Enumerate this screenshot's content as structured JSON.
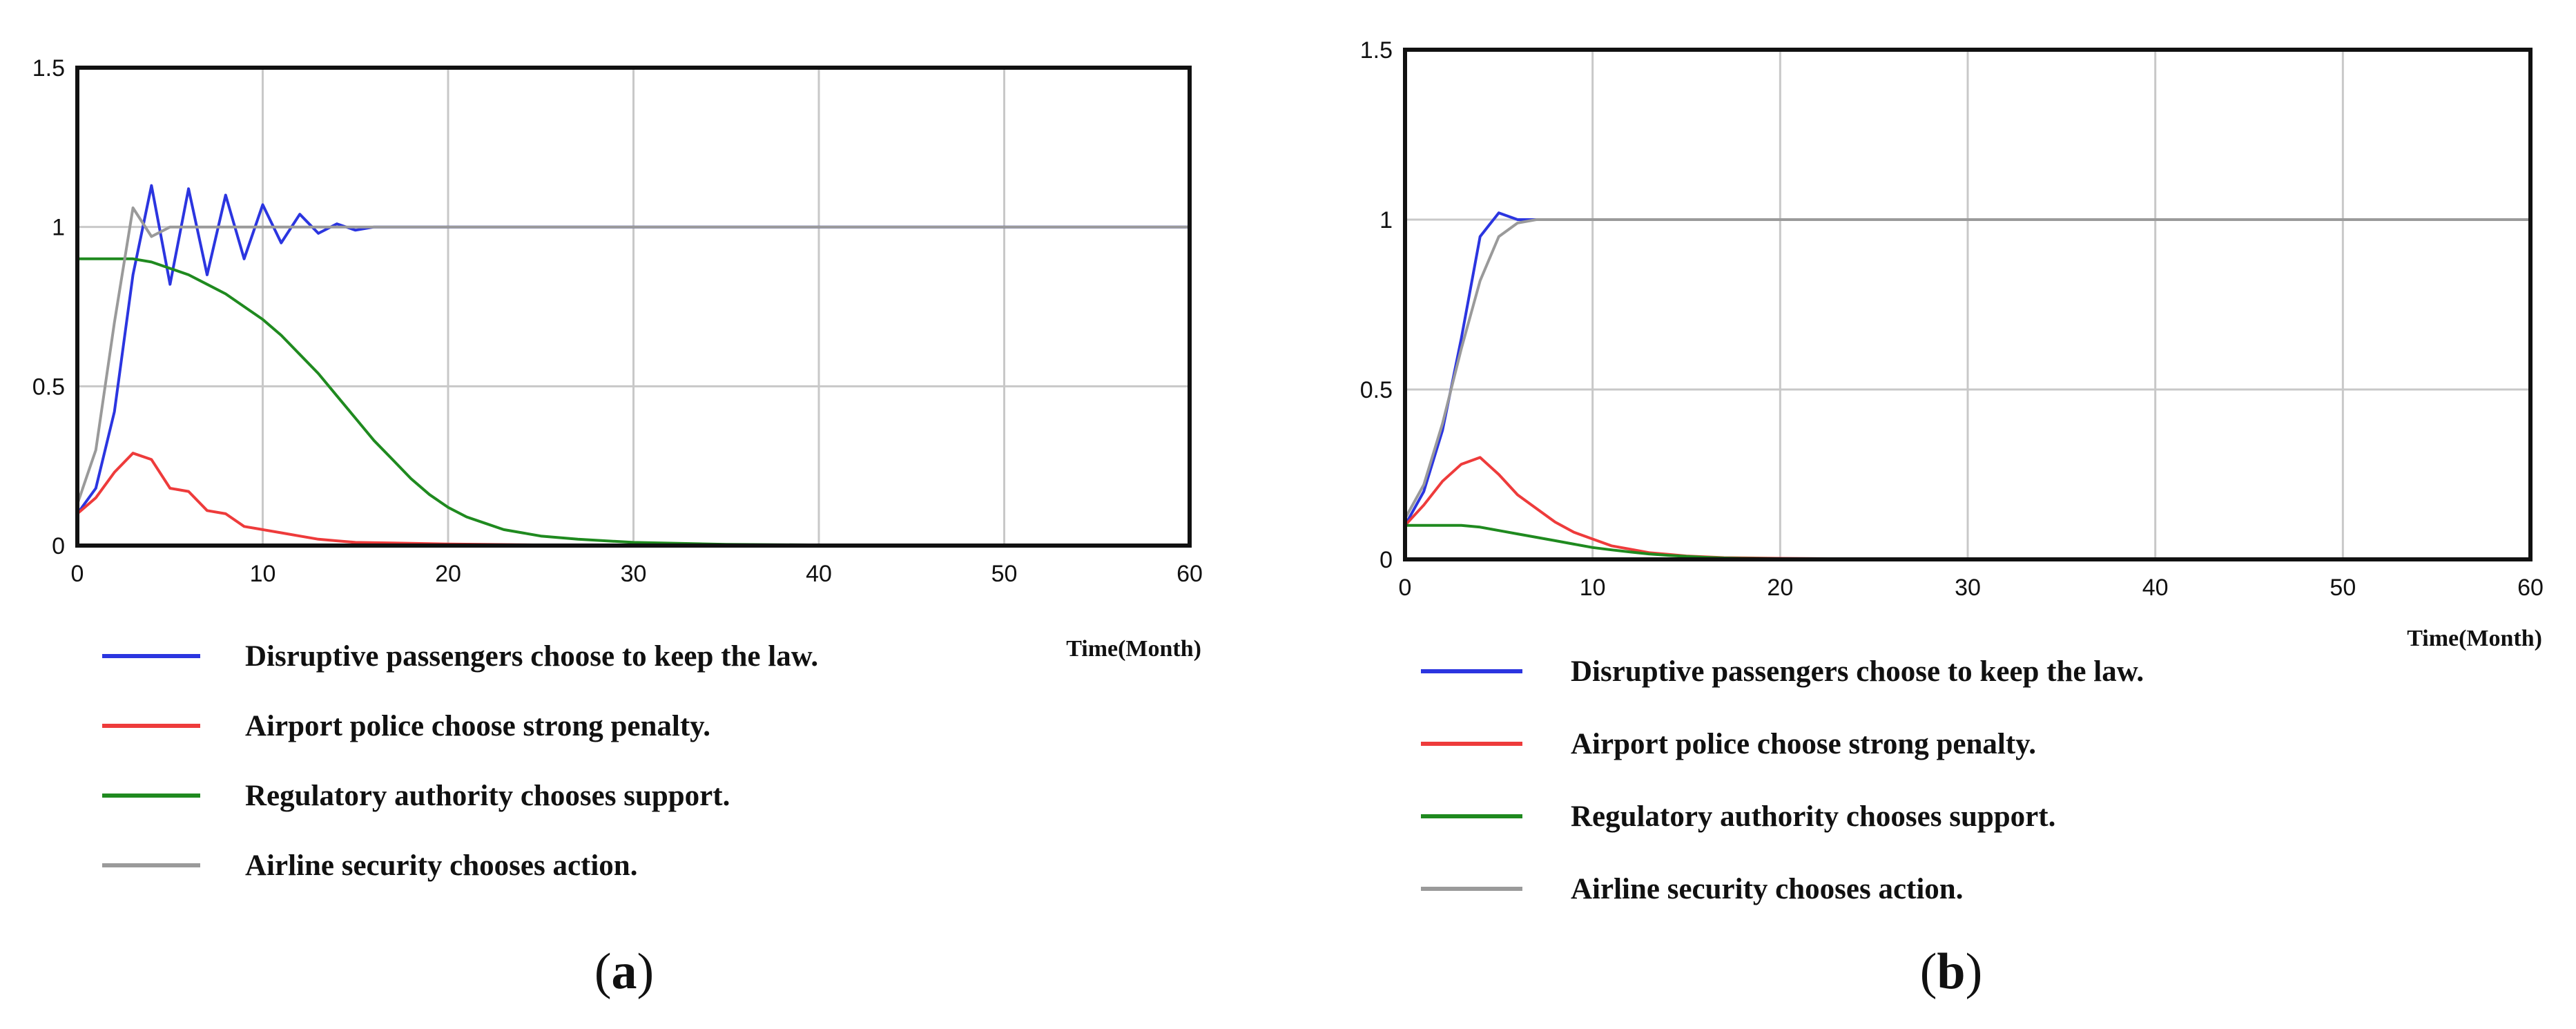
{
  "chart_data": [
    {
      "type": "line",
      "panel_label": "a",
      "xlabel": "Time(Month)",
      "ylabel": "",
      "xlim": [
        0,
        60
      ],
      "ylim": [
        0,
        1.5
      ],
      "xticks": [
        0,
        10,
        20,
        30,
        40,
        50,
        60
      ],
      "xtick_labels": [
        "0",
        "10",
        "20",
        "30",
        "40",
        "50",
        "60"
      ],
      "yticks": [
        0,
        0.5,
        1,
        1.5
      ],
      "ytick_labels": [
        "0",
        "0.5",
        "1",
        "1.5"
      ],
      "grid": true,
      "legend_position": "bottom",
      "series": [
        {
          "name": "Disruptive passengers choose to keep the law.",
          "color": "#2b35e0",
          "x": [
            0,
            1,
            2,
            3,
            4,
            5,
            6,
            7,
            8,
            9,
            10,
            11,
            12,
            13,
            14,
            15,
            16,
            17,
            18,
            20,
            25,
            30,
            40,
            50,
            60
          ],
          "y": [
            0.1,
            0.18,
            0.42,
            0.85,
            1.13,
            0.82,
            1.12,
            0.85,
            1.1,
            0.9,
            1.07,
            0.95,
            1.04,
            0.98,
            1.01,
            0.99,
            1.0,
            1.0,
            1.0,
            1.0,
            1.0,
            1.0,
            1.0,
            1.0,
            1.0
          ]
        },
        {
          "name": "Airport police choose strong penalty.",
          "color": "#ee3b3b",
          "x": [
            0,
            1,
            2,
            3,
            4,
            5,
            6,
            7,
            8,
            9,
            10,
            11,
            12,
            13,
            14,
            15,
            17,
            20,
            25,
            30,
            40,
            50,
            60
          ],
          "y": [
            0.1,
            0.15,
            0.23,
            0.29,
            0.27,
            0.18,
            0.17,
            0.11,
            0.1,
            0.06,
            0.05,
            0.04,
            0.03,
            0.02,
            0.015,
            0.01,
            0.008,
            0.005,
            0.002,
            0.001,
            0.0,
            0.0,
            0.0
          ]
        },
        {
          "name": "Regulatory authority chooses support.",
          "color": "#1f8a1f",
          "x": [
            0,
            1,
            2,
            3,
            4,
            5,
            6,
            7,
            8,
            9,
            10,
            11,
            12,
            13,
            14,
            15,
            16,
            17,
            18,
            19,
            20,
            21,
            22,
            23,
            24,
            25,
            27,
            30,
            35,
            40,
            50,
            60
          ],
          "y": [
            0.9,
            0.9,
            0.9,
            0.9,
            0.89,
            0.87,
            0.85,
            0.82,
            0.79,
            0.75,
            0.71,
            0.66,
            0.6,
            0.54,
            0.47,
            0.4,
            0.33,
            0.27,
            0.21,
            0.16,
            0.12,
            0.09,
            0.07,
            0.05,
            0.04,
            0.03,
            0.02,
            0.01,
            0.004,
            0.002,
            0.0,
            0.0
          ]
        },
        {
          "name": "Airline security chooses action.",
          "color": "#9a9a9a",
          "x": [
            0,
            1,
            2,
            3,
            4,
            5,
            6,
            7,
            8,
            10,
            20,
            30,
            40,
            50,
            60
          ],
          "y": [
            0.13,
            0.3,
            0.7,
            1.06,
            0.97,
            1.0,
            1.0,
            1.0,
            1.0,
            1.0,
            1.0,
            1.0,
            1.0,
            1.0,
            1.0
          ]
        }
      ]
    },
    {
      "type": "line",
      "panel_label": "b",
      "xlabel": "Time(Month)",
      "ylabel": "",
      "xlim": [
        0,
        60
      ],
      "ylim": [
        0,
        1.5
      ],
      "xticks": [
        0,
        10,
        20,
        30,
        40,
        50,
        60
      ],
      "xtick_labels": [
        "0",
        "10",
        "20",
        "30",
        "40",
        "50",
        "60"
      ],
      "yticks": [
        0,
        0.5,
        1,
        1.5
      ],
      "ytick_labels": [
        "0",
        "0.5",
        "1",
        "1.5"
      ],
      "grid": true,
      "legend_position": "bottom",
      "series": [
        {
          "name": "Disruptive passengers choose to keep the law.",
          "color": "#2b35e0",
          "x": [
            0,
            1,
            2,
            3,
            4,
            5,
            6,
            7,
            8,
            10,
            20,
            30,
            40,
            50,
            60
          ],
          "y": [
            0.1,
            0.2,
            0.38,
            0.65,
            0.95,
            1.02,
            1.0,
            1.0,
            1.0,
            1.0,
            1.0,
            1.0,
            1.0,
            1.0,
            1.0
          ]
        },
        {
          "name": "Airport police choose strong penalty.",
          "color": "#ee3b3b",
          "x": [
            0,
            1,
            2,
            3,
            4,
            5,
            6,
            7,
            8,
            9,
            10,
            11,
            12,
            13,
            14,
            15,
            17,
            20,
            25,
            30,
            40,
            50,
            60
          ],
          "y": [
            0.1,
            0.16,
            0.23,
            0.28,
            0.3,
            0.25,
            0.19,
            0.15,
            0.11,
            0.08,
            0.06,
            0.04,
            0.03,
            0.02,
            0.015,
            0.01,
            0.005,
            0.003,
            0.001,
            0.0,
            0.0,
            0.0,
            0.0
          ]
        },
        {
          "name": "Regulatory authority chooses support.",
          "color": "#1f8a1f",
          "x": [
            0,
            1,
            2,
            3,
            4,
            5,
            6,
            7,
            8,
            9,
            10,
            11,
            12,
            13,
            14,
            15,
            16,
            17,
            18,
            20,
            25,
            30,
            40,
            50,
            60
          ],
          "y": [
            0.1,
            0.1,
            0.1,
            0.1,
            0.095,
            0.085,
            0.075,
            0.065,
            0.055,
            0.045,
            0.035,
            0.028,
            0.022,
            0.016,
            0.012,
            0.009,
            0.006,
            0.004,
            0.003,
            0.002,
            0.001,
            0.0,
            0.0,
            0.0,
            0.0
          ]
        },
        {
          "name": "Airline security chooses action.",
          "color": "#9a9a9a",
          "x": [
            0,
            1,
            2,
            3,
            4,
            5,
            6,
            7,
            8,
            10,
            20,
            30,
            40,
            50,
            60
          ],
          "y": [
            0.12,
            0.22,
            0.4,
            0.62,
            0.82,
            0.95,
            0.99,
            1.0,
            1.0,
            1.0,
            1.0,
            1.0,
            1.0,
            1.0,
            1.0
          ]
        }
      ]
    }
  ]
}
